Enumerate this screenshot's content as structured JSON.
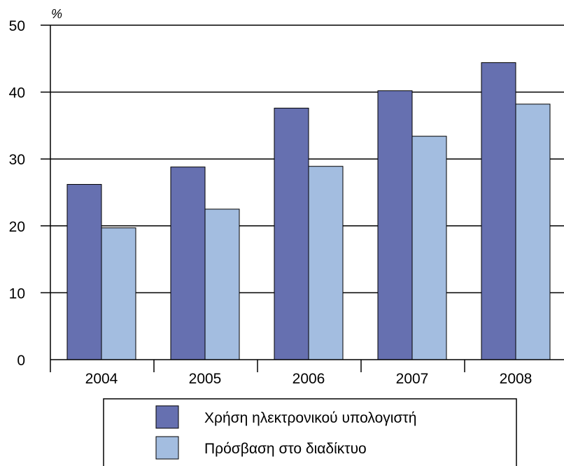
{
  "chart_data": {
    "type": "bar",
    "unit_label": "%",
    "categories": [
      "2004",
      "2005",
      "2006",
      "2007",
      "2008"
    ],
    "series": [
      {
        "name": "Χρήση ηλεκτρονικού υπολογιστή",
        "color": "#6670b0",
        "values": [
          26.2,
          28.8,
          37.6,
          40.2,
          44.4
        ]
      },
      {
        "name": "Πρόσβαση στο διαδίκτυο",
        "color": "#a3bde0",
        "values": [
          19.7,
          22.5,
          28.9,
          33.4,
          38.2
        ]
      }
    ],
    "ylim": [
      0,
      50
    ],
    "yticks": [
      0,
      10,
      20,
      30,
      40,
      50
    ],
    "grid": true,
    "legend_position": "bottom"
  }
}
